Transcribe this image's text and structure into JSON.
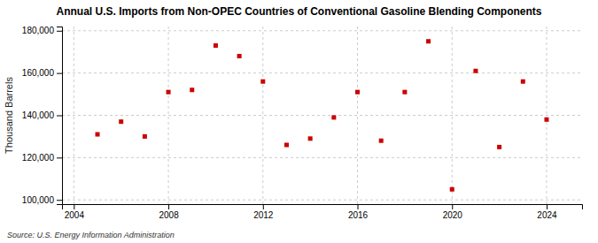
{
  "chart_data": {
    "type": "scatter",
    "title": "Annual U.S. Imports from Non-OPEC Countries of Conventional Gasoline Blending Components",
    "y_label": "Thousand Barrels",
    "source": "Source: U.S. Energy Information Administration",
    "x": [
      2005,
      2006,
      2007,
      2008,
      2009,
      2010,
      2011,
      2012,
      2013,
      2014,
      2015,
      2016,
      2017,
      2018,
      2019,
      2020,
      2021,
      2022,
      2023,
      2024
    ],
    "values": [
      131000,
      137000,
      130000,
      151000,
      152000,
      173000,
      168000,
      156000,
      126000,
      129000,
      139000,
      151000,
      128000,
      151000,
      175000,
      105000,
      161000,
      125000,
      156000,
      138000
    ],
    "color": "#cc0000",
    "marker": "square",
    "xlim": [
      2003.5,
      2025.5
    ],
    "xticks": [
      2004,
      2008,
      2012,
      2016,
      2020,
      2024
    ],
    "ylim": [
      98000,
      182000
    ],
    "yticks": [
      {
        "value": 100000,
        "label": "100,000"
      },
      {
        "value": 120000,
        "label": "120,000"
      },
      {
        "value": 140000,
        "label": "140,000"
      },
      {
        "value": 160000,
        "label": "160,000"
      },
      {
        "value": 180000,
        "label": "180,000"
      }
    ],
    "grid": true
  }
}
